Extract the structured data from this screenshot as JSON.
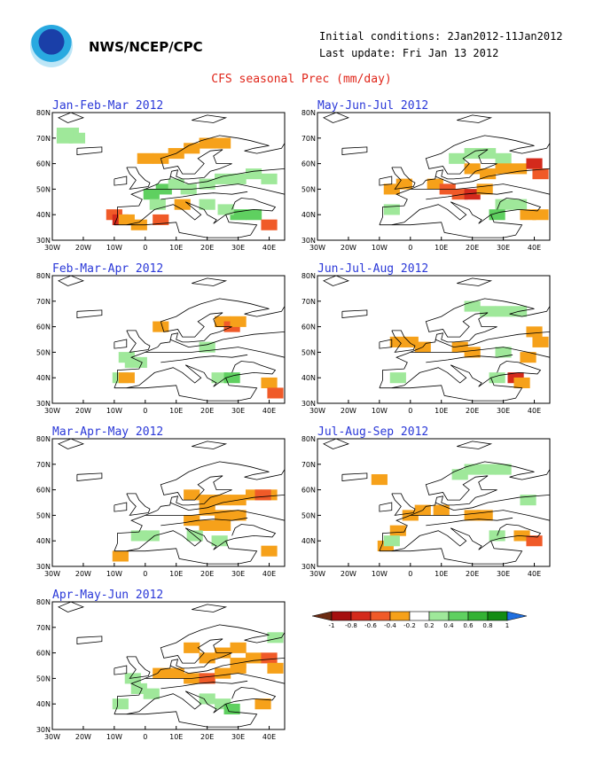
{
  "header": {
    "org": "NWS/NCEP/CPC",
    "initial_conditions": "Initial conditions: 2Jan2012-11Jan2012",
    "last_update": "Last update: Fri Jan 13 2012",
    "title": "CFS seasonal Prec (mm/day)"
  },
  "map_axes": {
    "lon_labels": [
      "30W",
      "20W",
      "10W",
      "0",
      "10E",
      "20E",
      "30E",
      "40E"
    ],
    "lat_labels": [
      "30N",
      "40N",
      "50N",
      "60N",
      "70N",
      "80N"
    ]
  },
  "legend": {
    "labels": [
      "-1",
      "-0.8",
      "-0.6",
      "-0.4",
      "-0.2",
      "0.2",
      "0.4",
      "0.6",
      "0.8",
      "1"
    ],
    "colors": [
      "#6b2b12",
      "#a50f0f",
      "#d42a1c",
      "#f05a28",
      "#f6a11a",
      "#ffffff",
      "#9fe89a",
      "#5fd060",
      "#34b234",
      "#138c13",
      "#1f6fe0"
    ]
  },
  "panels": [
    {
      "title": "Jan-Feb-Mar 2012",
      "col": 0,
      "row": 0,
      "cells": [
        [
          -26,
          70,
          "#9fe89a"
        ],
        [
          -24,
          72,
          "#9fe89a"
        ],
        [
          -22,
          70,
          "#9fe89a"
        ],
        [
          -26,
          72,
          "#9fe89a"
        ],
        [
          0,
          62,
          "#f6a11a"
        ],
        [
          5,
          62,
          "#f6a11a"
        ],
        [
          10,
          64,
          "#f6a11a"
        ],
        [
          15,
          66,
          "#f6a11a"
        ],
        [
          20,
          68,
          "#f6a11a"
        ],
        [
          25,
          68,
          "#f6a11a"
        ],
        [
          -10,
          40,
          "#f05a28"
        ],
        [
          -8,
          38,
          "#d42a1c"
        ],
        [
          -6,
          38,
          "#f6a11a"
        ],
        [
          -2,
          36,
          "#f6a11a"
        ],
        [
          5,
          38,
          "#f05a28"
        ],
        [
          2,
          48,
          "#5fd060"
        ],
        [
          6,
          50,
          "#5fd060"
        ],
        [
          10,
          52,
          "#9fe89a"
        ],
        [
          14,
          50,
          "#9fe89a"
        ],
        [
          20,
          52,
          "#9fe89a"
        ],
        [
          25,
          54,
          "#9fe89a"
        ],
        [
          30,
          54,
          "#9fe89a"
        ],
        [
          35,
          56,
          "#9fe89a"
        ],
        [
          40,
          54,
          "#9fe89a"
        ],
        [
          30,
          40,
          "#5fd060"
        ],
        [
          35,
          40,
          "#5fd060"
        ],
        [
          26,
          42,
          "#9fe89a"
        ],
        [
          20,
          44,
          "#9fe89a"
        ],
        [
          40,
          36,
          "#f05a28"
        ],
        [
          4,
          44,
          "#9fe89a"
        ],
        [
          12,
          44,
          "#f6a11a"
        ]
      ]
    },
    {
      "title": "May-Jun-Jul 2012",
      "col": 1,
      "row": 0,
      "cells": [
        [
          15,
          62,
          "#9fe89a"
        ],
        [
          20,
          64,
          "#9fe89a"
        ],
        [
          25,
          64,
          "#9fe89a"
        ],
        [
          30,
          62,
          "#9fe89a"
        ],
        [
          20,
          58,
          "#f6a11a"
        ],
        [
          25,
          56,
          "#f6a11a"
        ],
        [
          30,
          58,
          "#f6a11a"
        ],
        [
          35,
          58,
          "#f6a11a"
        ],
        [
          40,
          60,
          "#d42a1c"
        ],
        [
          42,
          56,
          "#f05a28"
        ],
        [
          8,
          52,
          "#f6a11a"
        ],
        [
          12,
          50,
          "#f05a28"
        ],
        [
          16,
          48,
          "#f05a28"
        ],
        [
          20,
          48,
          "#d42a1c"
        ],
        [
          24,
          50,
          "#f6a11a"
        ],
        [
          -6,
          50,
          "#f6a11a"
        ],
        [
          -2,
          52,
          "#f6a11a"
        ],
        [
          30,
          44,
          "#9fe89a"
        ],
        [
          35,
          44,
          "#9fe89a"
        ],
        [
          -6,
          42,
          "#9fe89a"
        ],
        [
          38,
          40,
          "#f6a11a"
        ],
        [
          42,
          40,
          "#f6a11a"
        ],
        [
          28,
          40,
          "#5fd060"
        ]
      ]
    },
    {
      "title": "Feb-Mar-Apr 2012",
      "col": 0,
      "row": 1,
      "cells": [
        [
          5,
          60,
          "#f6a11a"
        ],
        [
          25,
          62,
          "#f6a11a"
        ],
        [
          28,
          60,
          "#f05a28"
        ],
        [
          30,
          62,
          "#f6a11a"
        ],
        [
          -6,
          48,
          "#9fe89a"
        ],
        [
          -4,
          46,
          "#9fe89a"
        ],
        [
          -2,
          46,
          "#9fe89a"
        ],
        [
          -8,
          40,
          "#9fe89a"
        ],
        [
          -6,
          40,
          "#f6a11a"
        ],
        [
          20,
          52,
          "#9fe89a"
        ],
        [
          24,
          40,
          "#9fe89a"
        ],
        [
          28,
          40,
          "#5fd060"
        ],
        [
          40,
          38,
          "#f6a11a"
        ],
        [
          42,
          34,
          "#f05a28"
        ]
      ]
    },
    {
      "title": "Jun-Jul-Aug 2012",
      "col": 1,
      "row": 1,
      "cells": [
        [
          20,
          68,
          "#9fe89a"
        ],
        [
          25,
          66,
          "#9fe89a"
        ],
        [
          30,
          66,
          "#9fe89a"
        ],
        [
          35,
          66,
          "#9fe89a"
        ],
        [
          -4,
          54,
          "#f6a11a"
        ],
        [
          0,
          54,
          "#f6a11a"
        ],
        [
          4,
          52,
          "#f6a11a"
        ],
        [
          16,
          52,
          "#f6a11a"
        ],
        [
          20,
          50,
          "#f6a11a"
        ],
        [
          40,
          58,
          "#f6a11a"
        ],
        [
          42,
          54,
          "#f6a11a"
        ],
        [
          38,
          48,
          "#f6a11a"
        ],
        [
          34,
          40,
          "#d42a1c"
        ],
        [
          36,
          38,
          "#f6a11a"
        ],
        [
          28,
          40,
          "#9fe89a"
        ],
        [
          30,
          50,
          "#9fe89a"
        ],
        [
          -4,
          40,
          "#9fe89a"
        ]
      ]
    },
    {
      "title": "Mar-Apr-May 2012",
      "col": 0,
      "row": 2,
      "cells": [
        [
          15,
          58,
          "#f6a11a"
        ],
        [
          20,
          56,
          "#f6a11a"
        ],
        [
          25,
          56,
          "#f6a11a"
        ],
        [
          30,
          56,
          "#f6a11a"
        ],
        [
          35,
          58,
          "#f6a11a"
        ],
        [
          40,
          58,
          "#f6a11a"
        ],
        [
          20,
          52,
          "#f6a11a"
        ],
        [
          25,
          50,
          "#f6a11a"
        ],
        [
          30,
          50,
          "#f6a11a"
        ],
        [
          20,
          46,
          "#f6a11a"
        ],
        [
          25,
          46,
          "#f6a11a"
        ],
        [
          15,
          48,
          "#f6a11a"
        ],
        [
          -2,
          42,
          "#9fe89a"
        ],
        [
          2,
          42,
          "#9fe89a"
        ],
        [
          16,
          42,
          "#9fe89a"
        ],
        [
          24,
          40,
          "#9fe89a"
        ],
        [
          -8,
          34,
          "#f6a11a"
        ],
        [
          40,
          36,
          "#f6a11a"
        ],
        [
          38,
          58,
          "#f05a28"
        ]
      ]
    },
    {
      "title": "Jul-Aug-Sep 2012",
      "col": 1,
      "row": 2,
      "cells": [
        [
          20,
          68,
          "#9fe89a"
        ],
        [
          25,
          68,
          "#9fe89a"
        ],
        [
          30,
          68,
          "#9fe89a"
        ],
        [
          16,
          66,
          "#9fe89a"
        ],
        [
          0,
          50,
          "#f6a11a"
        ],
        [
          4,
          52,
          "#f6a11a"
        ],
        [
          10,
          52,
          "#f6a11a"
        ],
        [
          20,
          50,
          "#f6a11a"
        ],
        [
          24,
          50,
          "#f6a11a"
        ],
        [
          -4,
          44,
          "#f6a11a"
        ],
        [
          -8,
          38,
          "#f6a11a"
        ],
        [
          36,
          42,
          "#f6a11a"
        ],
        [
          40,
          40,
          "#f05a28"
        ],
        [
          28,
          42,
          "#9fe89a"
        ],
        [
          -6,
          40,
          "#9fe89a"
        ],
        [
          38,
          56,
          "#9fe89a"
        ],
        [
          -10,
          64,
          "#f6a11a"
        ]
      ]
    },
    {
      "title": "Apr-May-Jun 2012",
      "col": 0,
      "row": 3,
      "cells": [
        [
          5,
          52,
          "#f6a11a"
        ],
        [
          10,
          52,
          "#f6a11a"
        ],
        [
          15,
          50,
          "#f6a11a"
        ],
        [
          20,
          50,
          "#f05a28"
        ],
        [
          25,
          52,
          "#f6a11a"
        ],
        [
          30,
          56,
          "#f6a11a"
        ],
        [
          35,
          58,
          "#f6a11a"
        ],
        [
          40,
          58,
          "#f05a28"
        ],
        [
          42,
          54,
          "#f6a11a"
        ],
        [
          30,
          54,
          "#f6a11a"
        ],
        [
          20,
          58,
          "#f6a11a"
        ],
        [
          25,
          60,
          "#f6a11a"
        ],
        [
          15,
          62,
          "#f6a11a"
        ],
        [
          30,
          62,
          "#f6a11a"
        ],
        [
          -4,
          50,
          "#9fe89a"
        ],
        [
          -2,
          46,
          "#9fe89a"
        ],
        [
          2,
          44,
          "#9fe89a"
        ],
        [
          20,
          42,
          "#9fe89a"
        ],
        [
          25,
          40,
          "#9fe89a"
        ],
        [
          28,
          38,
          "#5fd060"
        ],
        [
          -8,
          40,
          "#9fe89a"
        ],
        [
          38,
          40,
          "#f6a11a"
        ],
        [
          42,
          66,
          "#9fe89a"
        ]
      ]
    }
  ]
}
